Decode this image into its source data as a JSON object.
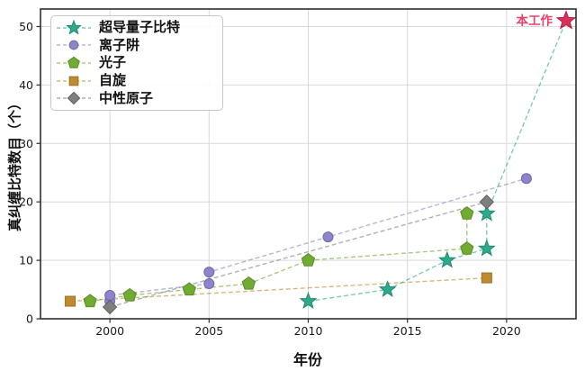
{
  "chart_data": {
    "type": "line",
    "title": "",
    "xlabel": "年份",
    "ylabel": "真纠缠比特数目（个）",
    "xlim": [
      1996.5,
      2023.5
    ],
    "ylim": [
      0,
      53
    ],
    "x_tick_values": [
      2000,
      2005,
      2010,
      2015,
      2020
    ],
    "x_tick_labels": [
      "2000",
      "2005",
      "2010",
      "2015",
      "2020"
    ],
    "y_tick_values": [
      0,
      10,
      20,
      30,
      40,
      50
    ],
    "y_tick_labels": [
      "0",
      "10",
      "20",
      "30",
      "40",
      "50"
    ],
    "grid": true,
    "grid_color": "#d9d9d9",
    "spine_color": "#2e2e2e",
    "legend_position": "upper-left",
    "series": [
      {
        "name": "超导量子比特",
        "marker": "star",
        "color": "#2fa98c",
        "edge": "#1e8a70",
        "points": [
          [
            2010,
            3
          ],
          [
            2014,
            5
          ],
          [
            2017,
            10
          ],
          [
            2019,
            12
          ],
          [
            2019,
            18
          ],
          [
            2023,
            51
          ]
        ],
        "highlight_last": true
      },
      {
        "name": "离子阱",
        "marker": "circle",
        "color": "#8d85c9",
        "edge": "#6f66ad",
        "points": [
          [
            2000,
            3
          ],
          [
            2000,
            4
          ],
          [
            2005,
            6
          ],
          [
            2005,
            8
          ],
          [
            2011,
            14
          ],
          [
            2021,
            24
          ]
        ]
      },
      {
        "name": "光子",
        "marker": "pentagon",
        "color": "#72ab33",
        "edge": "#588c22",
        "points": [
          [
            1999,
            3
          ],
          [
            2001,
            4
          ],
          [
            2004,
            5
          ],
          [
            2007,
            6
          ],
          [
            2010,
            10
          ],
          [
            2018,
            12
          ],
          [
            2018,
            18
          ]
        ]
      },
      {
        "name": "自旋",
        "marker": "square",
        "color": "#bf8b30",
        "edge": "#9a7023",
        "points": [
          [
            1998,
            3
          ],
          [
            2019,
            7
          ]
        ]
      },
      {
        "name": "中性原子",
        "marker": "diamond",
        "color": "#7f7f7f",
        "edge": "#5e5e5e",
        "points": [
          [
            2000,
            2
          ],
          [
            2019,
            20
          ]
        ]
      }
    ],
    "annotation": {
      "text": "本工作",
      "text_color": "#ee3f68",
      "marker": "star",
      "marker_color": "#d8315b",
      "marker_edge": "#b7204a",
      "x": 2023,
      "y": 51
    }
  }
}
